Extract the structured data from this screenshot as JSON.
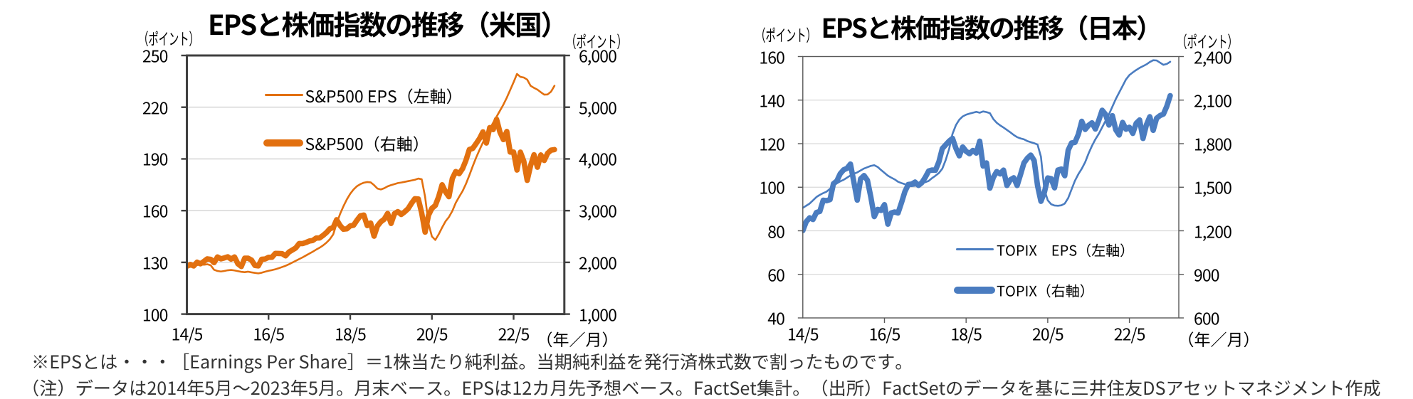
{
  "notes": {
    "line1": "※EPSとは・・・［Earnings Per Share］＝1株当たり純利益。当期純利益を発行済株式数で割ったものです。",
    "line2": "（注）データは2014年5月～2023年5月。月末ベース。EPSは12カ月先予想ベース。FactSet集計。（出所）FactSetのデータを基に三井住友DSアセットマネジメント作成"
  },
  "chart_data": [
    {
      "type": "line",
      "title": "EPSと株価指数の推移（米国）",
      "x": [
        "2014/5",
        "2014/6",
        "2014/7",
        "2014/8",
        "2014/9",
        "2014/10",
        "2014/11",
        "2014/12",
        "2015/1",
        "2015/2",
        "2015/3",
        "2015/4",
        "2015/5",
        "2015/6",
        "2015/7",
        "2015/8",
        "2015/9",
        "2015/10",
        "2015/11",
        "2015/12",
        "2016/1",
        "2016/2",
        "2016/3",
        "2016/4",
        "2016/5",
        "2016/6",
        "2016/7",
        "2016/8",
        "2016/9",
        "2016/10",
        "2016/11",
        "2016/12",
        "2017/1",
        "2017/2",
        "2017/3",
        "2017/4",
        "2017/5",
        "2017/6",
        "2017/7",
        "2017/8",
        "2017/9",
        "2017/10",
        "2017/11",
        "2017/12",
        "2018/1",
        "2018/2",
        "2018/3",
        "2018/4",
        "2018/5",
        "2018/6",
        "2018/7",
        "2018/8",
        "2018/9",
        "2018/10",
        "2018/11",
        "2018/12",
        "2019/1",
        "2019/2",
        "2019/3",
        "2019/4",
        "2019/5",
        "2019/6",
        "2019/7",
        "2019/8",
        "2019/9",
        "2019/10",
        "2019/11",
        "2019/12",
        "2020/1",
        "2020/2",
        "2020/3",
        "2020/4",
        "2020/5",
        "2020/6",
        "2020/7",
        "2020/8",
        "2020/9",
        "2020/10",
        "2020/11",
        "2020/12",
        "2021/1",
        "2021/2",
        "2021/3",
        "2021/4",
        "2021/5",
        "2021/6",
        "2021/7",
        "2021/8",
        "2021/9",
        "2021/10",
        "2021/11",
        "2021/12",
        "2022/1",
        "2022/2",
        "2022/3",
        "2022/4",
        "2022/5",
        "2022/6",
        "2022/7",
        "2022/8",
        "2022/9",
        "2022/10",
        "2022/11",
        "2022/12",
        "2023/1",
        "2023/2",
        "2023/3",
        "2023/4",
        "2023/5"
      ],
      "x_axis": {
        "unit": "（年／月）",
        "tick_labels": [
          "14/5",
          "16/5",
          "18/5",
          "20/5",
          "22/5"
        ],
        "tick_indices": [
          0,
          24,
          48,
          72,
          96
        ]
      },
      "left_axis": {
        "unit": "（ポイント）",
        "min": 100,
        "max": 250,
        "ticks": [
          100,
          130,
          160,
          190,
          220,
          250
        ],
        "tick_labels": [
          "100",
          "130",
          "160",
          "190",
          "220",
          "250"
        ]
      },
      "right_axis": {
        "unit": "（ポイント）",
        "min": 1000,
        "max": 6000,
        "ticks": [
          1000,
          2000,
          3000,
          4000,
          5000,
          6000
        ],
        "tick_labels": [
          "1,000",
          "2,000",
          "3,000",
          "4,000",
          "5,000",
          "6,000"
        ]
      },
      "grid": true,
      "legend_position": "inside-top-left",
      "series": [
        {
          "name": "S&P500 EPS（左軸）",
          "axis": "left",
          "style": "thin",
          "color": "#E2700F",
          "values": [
            127.0,
            127.4,
            127.9,
            128.4,
            128.9,
            128.6,
            128.9,
            128.3,
            125.7,
            125.0,
            124.7,
            125.0,
            125.4,
            125.6,
            125.3,
            124.9,
            124.5,
            124.3,
            124.6,
            124.2,
            123.9,
            123.6,
            124.0,
            124.6,
            125.1,
            125.5,
            126.0,
            126.6,
            127.3,
            128.0,
            128.9,
            129.9,
            130.9,
            131.9,
            132.9,
            134.0,
            135.1,
            136.2,
            137.4,
            138.5,
            139.8,
            141.4,
            143.4,
            146.2,
            152.5,
            158.0,
            162.5,
            166.5,
            169.8,
            172.3,
            174.2,
            175.4,
            176.2,
            176.6,
            176.4,
            174.8,
            172.8,
            172.3,
            173.0,
            174.1,
            174.8,
            175.4,
            176.0,
            176.3,
            176.7,
            177.1,
            177.5,
            177.9,
            178.6,
            178.2,
            168.0,
            152.5,
            145.0,
            143.0,
            146.3,
            150.2,
            153.8,
            156.3,
            159.8,
            164.5,
            168.0,
            171.3,
            175.5,
            180.5,
            185.8,
            190.8,
            195.3,
            199.6,
            203.6,
            207.4,
            211.0,
            214.5,
            218.0,
            221.5,
            225.5,
            230.0,
            234.5,
            239.3,
            237.6,
            237.2,
            236.0,
            232.4,
            231.2,
            230.2,
            228.7,
            227.3,
            227.4,
            229.0,
            232.4
          ]
        },
        {
          "name": "S&P500（右軸）",
          "axis": "right",
          "style": "thick",
          "color": "#E2700F",
          "values": [
            1923.6,
            1960.2,
            1930.7,
            2003.4,
            1972.3,
            2018.1,
            2067.6,
            2058.9,
            1995.0,
            2104.5,
            2067.9,
            2085.5,
            2107.4,
            2063.1,
            2103.8,
            1972.2,
            1920.0,
            2079.4,
            2080.4,
            2043.9,
            1940.2,
            1932.2,
            2059.7,
            2065.3,
            2097.0,
            2098.9,
            2173.6,
            2171.0,
            2168.3,
            2126.2,
            2198.8,
            2238.8,
            2278.9,
            2363.6,
            2362.7,
            2384.2,
            2411.8,
            2423.4,
            2470.3,
            2471.7,
            2519.4,
            2575.3,
            2647.6,
            2673.6,
            2823.8,
            2713.8,
            2640.9,
            2648.1,
            2705.3,
            2718.4,
            2816.3,
            2901.5,
            2914.0,
            2711.7,
            2760.2,
            2506.9,
            2704.1,
            2784.5,
            2834.4,
            2945.8,
            2752.1,
            2941.8,
            2980.4,
            2926.5,
            2976.7,
            3037.6,
            3141.0,
            3230.8,
            3225.5,
            2954.2,
            2584.6,
            2912.4,
            3044.3,
            3100.3,
            3271.1,
            3500.3,
            3363.0,
            3270.0,
            3621.6,
            3756.1,
            3714.2,
            3811.2,
            3972.9,
            4181.2,
            4204.1,
            4297.5,
            4395.3,
            4522.7,
            4307.5,
            4605.4,
            4567.0,
            4766.2,
            4515.6,
            4373.9,
            4530.4,
            4131.9,
            4132.2,
            3785.4,
            4130.3,
            3955.0,
            3585.6,
            3872.0,
            4080.1,
            3839.5,
            4076.6,
            3970.2,
            4109.3,
            4169.5,
            4179.8
          ]
        }
      ]
    },
    {
      "type": "line",
      "title": "EPSと株価指数の推移（日本）",
      "x": [
        "2014/5",
        "2014/6",
        "2014/7",
        "2014/8",
        "2014/9",
        "2014/10",
        "2014/11",
        "2014/12",
        "2015/1",
        "2015/2",
        "2015/3",
        "2015/4",
        "2015/5",
        "2015/6",
        "2015/7",
        "2015/8",
        "2015/9",
        "2015/10",
        "2015/11",
        "2015/12",
        "2016/1",
        "2016/2",
        "2016/3",
        "2016/4",
        "2016/5",
        "2016/6",
        "2016/7",
        "2016/8",
        "2016/9",
        "2016/10",
        "2016/11",
        "2016/12",
        "2017/1",
        "2017/2",
        "2017/3",
        "2017/4",
        "2017/5",
        "2017/6",
        "2017/7",
        "2017/8",
        "2017/9",
        "2017/10",
        "2017/11",
        "2017/12",
        "2018/1",
        "2018/2",
        "2018/3",
        "2018/4",
        "2018/5",
        "2018/6",
        "2018/7",
        "2018/8",
        "2018/9",
        "2018/10",
        "2018/11",
        "2018/12",
        "2019/1",
        "2019/2",
        "2019/3",
        "2019/4",
        "2019/5",
        "2019/6",
        "2019/7",
        "2019/8",
        "2019/9",
        "2019/10",
        "2019/11",
        "2019/12",
        "2020/1",
        "2020/2",
        "2020/3",
        "2020/4",
        "2020/5",
        "2020/6",
        "2020/7",
        "2020/8",
        "2020/9",
        "2020/10",
        "2020/11",
        "2020/12",
        "2021/1",
        "2021/2",
        "2021/3",
        "2021/4",
        "2021/5",
        "2021/6",
        "2021/7",
        "2021/8",
        "2021/9",
        "2021/10",
        "2021/11",
        "2021/12",
        "2022/1",
        "2022/2",
        "2022/3",
        "2022/4",
        "2022/5",
        "2022/6",
        "2022/7",
        "2022/8",
        "2022/9",
        "2022/10",
        "2022/11",
        "2022/12",
        "2023/1",
        "2023/2",
        "2023/3",
        "2023/4",
        "2023/5"
      ],
      "x_axis": {
        "unit": "（年／月）",
        "tick_labels": [
          "14/5",
          "16/5",
          "18/5",
          "20/5",
          "22/5"
        ],
        "tick_indices": [
          0,
          24,
          48,
          72,
          96
        ]
      },
      "left_axis": {
        "unit": "（ポイント）",
        "min": 40,
        "max": 160,
        "ticks": [
          40,
          60,
          80,
          100,
          120,
          140,
          160
        ],
        "tick_labels": [
          "40",
          "60",
          "80",
          "100",
          "120",
          "140",
          "160"
        ]
      },
      "right_axis": {
        "unit": "（ポイント）",
        "min": 600,
        "max": 2400,
        "ticks": [
          600,
          900,
          1200,
          1500,
          1800,
          2100,
          2400
        ],
        "tick_labels": [
          "600",
          "900",
          "1,200",
          "1,500",
          "1,800",
          "2,100",
          "2,400"
        ]
      },
      "grid": true,
      "legend_position": "inside-bottom-center",
      "series": [
        {
          "name": "TOPIX　EPS（左軸）",
          "axis": "left",
          "style": "thin",
          "color": "#4A7CC0",
          "values": [
            90.5,
            91.5,
            92.5,
            94.0,
            95.5,
            96.5,
            97.3,
            98.0,
            99.3,
            100.8,
            101.8,
            102.7,
            103.4,
            104.4,
            105.4,
            106.2,
            106.8,
            107.7,
            108.6,
            109.2,
            109.8,
            110.1,
            109.3,
            107.9,
            106.6,
            105.3,
            104.4,
            103.6,
            102.5,
            101.9,
            101.4,
            100.9,
            100.5,
            100.7,
            101.1,
            101.7,
            102.3,
            102.9,
            104.2,
            105.3,
            106.5,
            108.5,
            112.5,
            117.5,
            124.5,
            128.5,
            131.0,
            132.5,
            133.3,
            133.8,
            134.2,
            134.6,
            134.2,
            134.8,
            134.5,
            134.0,
            131.3,
            129.6,
            128.4,
            127.4,
            126.3,
            125.2,
            124.0,
            123.0,
            122.4,
            122.0,
            121.2,
            120.7,
            120.2,
            119.6,
            114.0,
            99.0,
            94.0,
            92.2,
            91.6,
            91.5,
            91.7,
            92.5,
            95.0,
            99.0,
            103.0,
            106.0,
            108.5,
            111.5,
            115.5,
            119.0,
            122.0,
            124.5,
            127.5,
            130.5,
            133.5,
            137.0,
            140.5,
            143.5,
            146.5,
            149.5,
            151.5,
            152.7,
            153.8,
            154.8,
            155.6,
            156.4,
            157.5,
            158.3,
            158.2,
            157.2,
            156.2,
            156.6,
            157.6
          ]
        },
        {
          "name": "TOPIX（右軸）",
          "axis": "right",
          "style": "thick",
          "color": "#4A7CC0",
          "values": [
            1201.4,
            1262.6,
            1289.4,
            1277.9,
            1326.3,
            1333.6,
            1410.3,
            1407.5,
            1415.1,
            1523.9,
            1543.1,
            1593.3,
            1620.1,
            1630.4,
            1659.5,
            1537.1,
            1411.2,
            1558.2,
            1580.3,
            1547.3,
            1432.1,
            1297.9,
            1347.2,
            1340.6,
            1379.8,
            1245.8,
            1322.7,
            1329.5,
            1322.8,
            1393.0,
            1469.4,
            1518.6,
            1521.7,
            1535.3,
            1512.6,
            1531.8,
            1568.4,
            1611.9,
            1618.7,
            1617.4,
            1674.8,
            1765.9,
            1792.1,
            1817.6,
            1836.7,
            1768.2,
            1716.3,
            1777.2,
            1747.5,
            1730.9,
            1753.3,
            1735.4,
            1817.2,
            1646.1,
            1667.5,
            1494.1,
            1567.5,
            1607.7,
            1591.6,
            1617.9,
            1512.3,
            1551.1,
            1565.1,
            1511.9,
            1587.8,
            1667.0,
            1699.4,
            1721.4,
            1684.4,
            1510.9,
            1403.0,
            1464.0,
            1563.7,
            1558.8,
            1496.1,
            1618.2,
            1625.5,
            1579.3,
            1754.9,
            1804.7,
            1808.8,
            1864.5,
            1954.0,
            1898.2,
            1926.5,
            1943.6,
            1901.1,
            1960.7,
            2030.2,
            2001.2,
            1928.4,
            1992.3,
            1895.9,
            1859.9,
            1946.4,
            1899.6,
            1912.7,
            1870.8,
            1940.3,
            1963.2,
            1835.9,
            1929.4,
            1985.6,
            1891.7,
            1975.3,
            1993.3,
            2003.5,
            2057.5,
            2130.6
          ]
        }
      ]
    }
  ]
}
